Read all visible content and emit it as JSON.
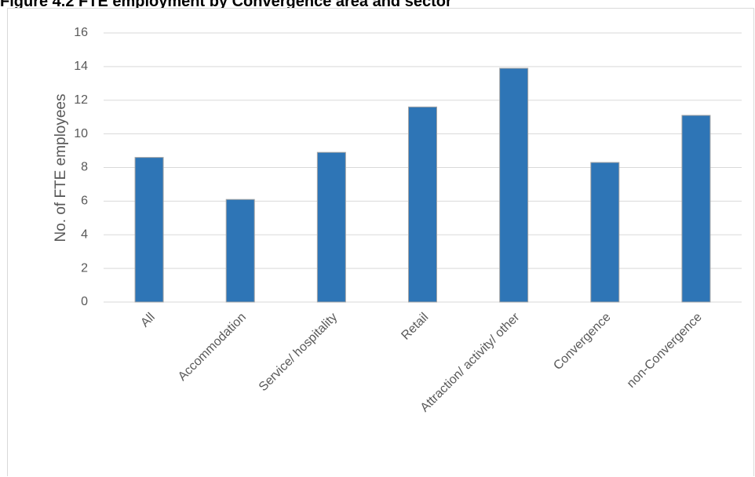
{
  "figure": {
    "title": "Figure 4.2 FTE employment by Convergence area and sector"
  },
  "chart_data": {
    "type": "bar",
    "categories": [
      "All",
      "Accommodation",
      "Service/ hospitality",
      "Retail",
      "Attraction/ activity/ other",
      "Convergence",
      "non-Convergence"
    ],
    "values": [
      8.6,
      6.1,
      8.9,
      11.6,
      13.9,
      8.3,
      11.1
    ],
    "ylabel": "No. of FTE employees",
    "ylim": [
      0,
      16
    ],
    "yticks": [
      0,
      2,
      4,
      6,
      8,
      10,
      12,
      14,
      16
    ],
    "ytick_labels": [
      "0",
      "2",
      "4",
      "6",
      "8",
      "10",
      "12",
      "14",
      "16"
    ],
    "grid": true,
    "colors": {
      "bar": "#2e75b6",
      "bar_border": "#a5a5a5",
      "grid": "#d9d9d9"
    }
  }
}
